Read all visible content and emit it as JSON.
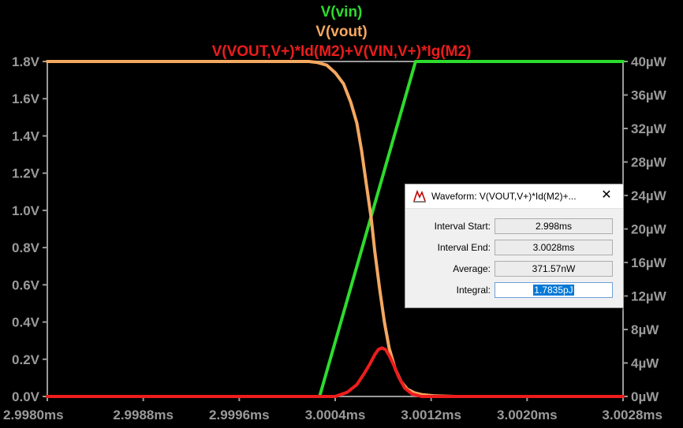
{
  "chart_data": {
    "type": "line",
    "title_lines": [
      "V(vin)",
      "V(vout)",
      "V(VOUT,V+)*Id(M2)+V(VIN,V+)*Ig(M2)"
    ],
    "x_ticks": [
      "2.9980ms",
      "2.9988ms",
      "2.9996ms",
      "3.0004ms",
      "3.0012ms",
      "3.0020ms",
      "3.0028ms"
    ],
    "xlim": [
      2.998,
      3.0028
    ],
    "x_unit": "ms",
    "y_left_ticks": [
      "0.0V",
      "0.2V",
      "0.4V",
      "0.6V",
      "0.8V",
      "1.0V",
      "1.2V",
      "1.4V",
      "1.6V",
      "1.8V"
    ],
    "ylim_left": [
      0,
      1.8
    ],
    "y_left_unit": "V",
    "y_right_ticks": [
      "0µW",
      "4µW",
      "8µW",
      "12µW",
      "16µW",
      "20µW",
      "24µW",
      "28µW",
      "32µW",
      "36µW",
      "40µW"
    ],
    "ylim_right": [
      0,
      40
    ],
    "y_right_unit": "µW",
    "grid": false,
    "series": [
      {
        "name": "V(vin)",
        "color": "#2ddc2d",
        "axis": "left",
        "x": [
          2.998,
          3.00027,
          3.00107,
          3.0028
        ],
        "y": [
          0.0,
          0.0,
          1.8,
          1.8
        ]
      },
      {
        "name": "V(vout)",
        "color": "#f4a860",
        "axis": "left",
        "x": [
          2.998,
          3.00018,
          3.00025,
          3.00033,
          3.0004,
          3.00047,
          3.00053,
          3.00058,
          3.00062,
          3.00066,
          3.0007,
          3.00073,
          3.00077,
          3.00081,
          3.00085,
          3.0009,
          3.00095,
          3.001,
          3.00106,
          3.00112,
          3.00122,
          3.0014,
          3.0028
        ],
        "y": [
          1.8,
          1.8,
          1.795,
          1.78,
          1.74,
          1.68,
          1.58,
          1.47,
          1.32,
          1.14,
          0.96,
          0.78,
          0.58,
          0.4,
          0.26,
          0.15,
          0.08,
          0.04,
          0.02,
          0.01,
          0.004,
          0.0,
          0.0
        ]
      },
      {
        "name": "V(VOUT,V+)*Id(M2)+V(VIN,V+)*Ig(M2)",
        "color": "#ee1c1c",
        "axis": "right",
        "x": [
          2.998,
          3.0004,
          3.0005,
          3.00058,
          3.00064,
          3.00069,
          3.00073,
          3.00076,
          3.00079,
          3.00082,
          3.00085,
          3.00089,
          3.00093,
          3.00098,
          3.00104,
          3.00112,
          3.0028
        ],
        "y": [
          0.0,
          0.0,
          0.5,
          1.4,
          2.7,
          3.9,
          5.0,
          5.6,
          5.8,
          5.6,
          4.9,
          3.7,
          2.3,
          1.0,
          0.3,
          0.0,
          0.0
        ]
      }
    ]
  },
  "dialog": {
    "title": "Waveform: V(VOUT,V+)*Id(M2)+...",
    "close_glyph": "✕",
    "icon": "waveform-probe-icon",
    "rows": [
      {
        "label": "Interval Start:",
        "value": "2.998ms"
      },
      {
        "label": "Interval End:",
        "value": "3.0028ms"
      },
      {
        "label": "Average:",
        "value": "371.57nW"
      },
      {
        "label": "Integral:",
        "value": "1.7835pJ"
      }
    ]
  }
}
